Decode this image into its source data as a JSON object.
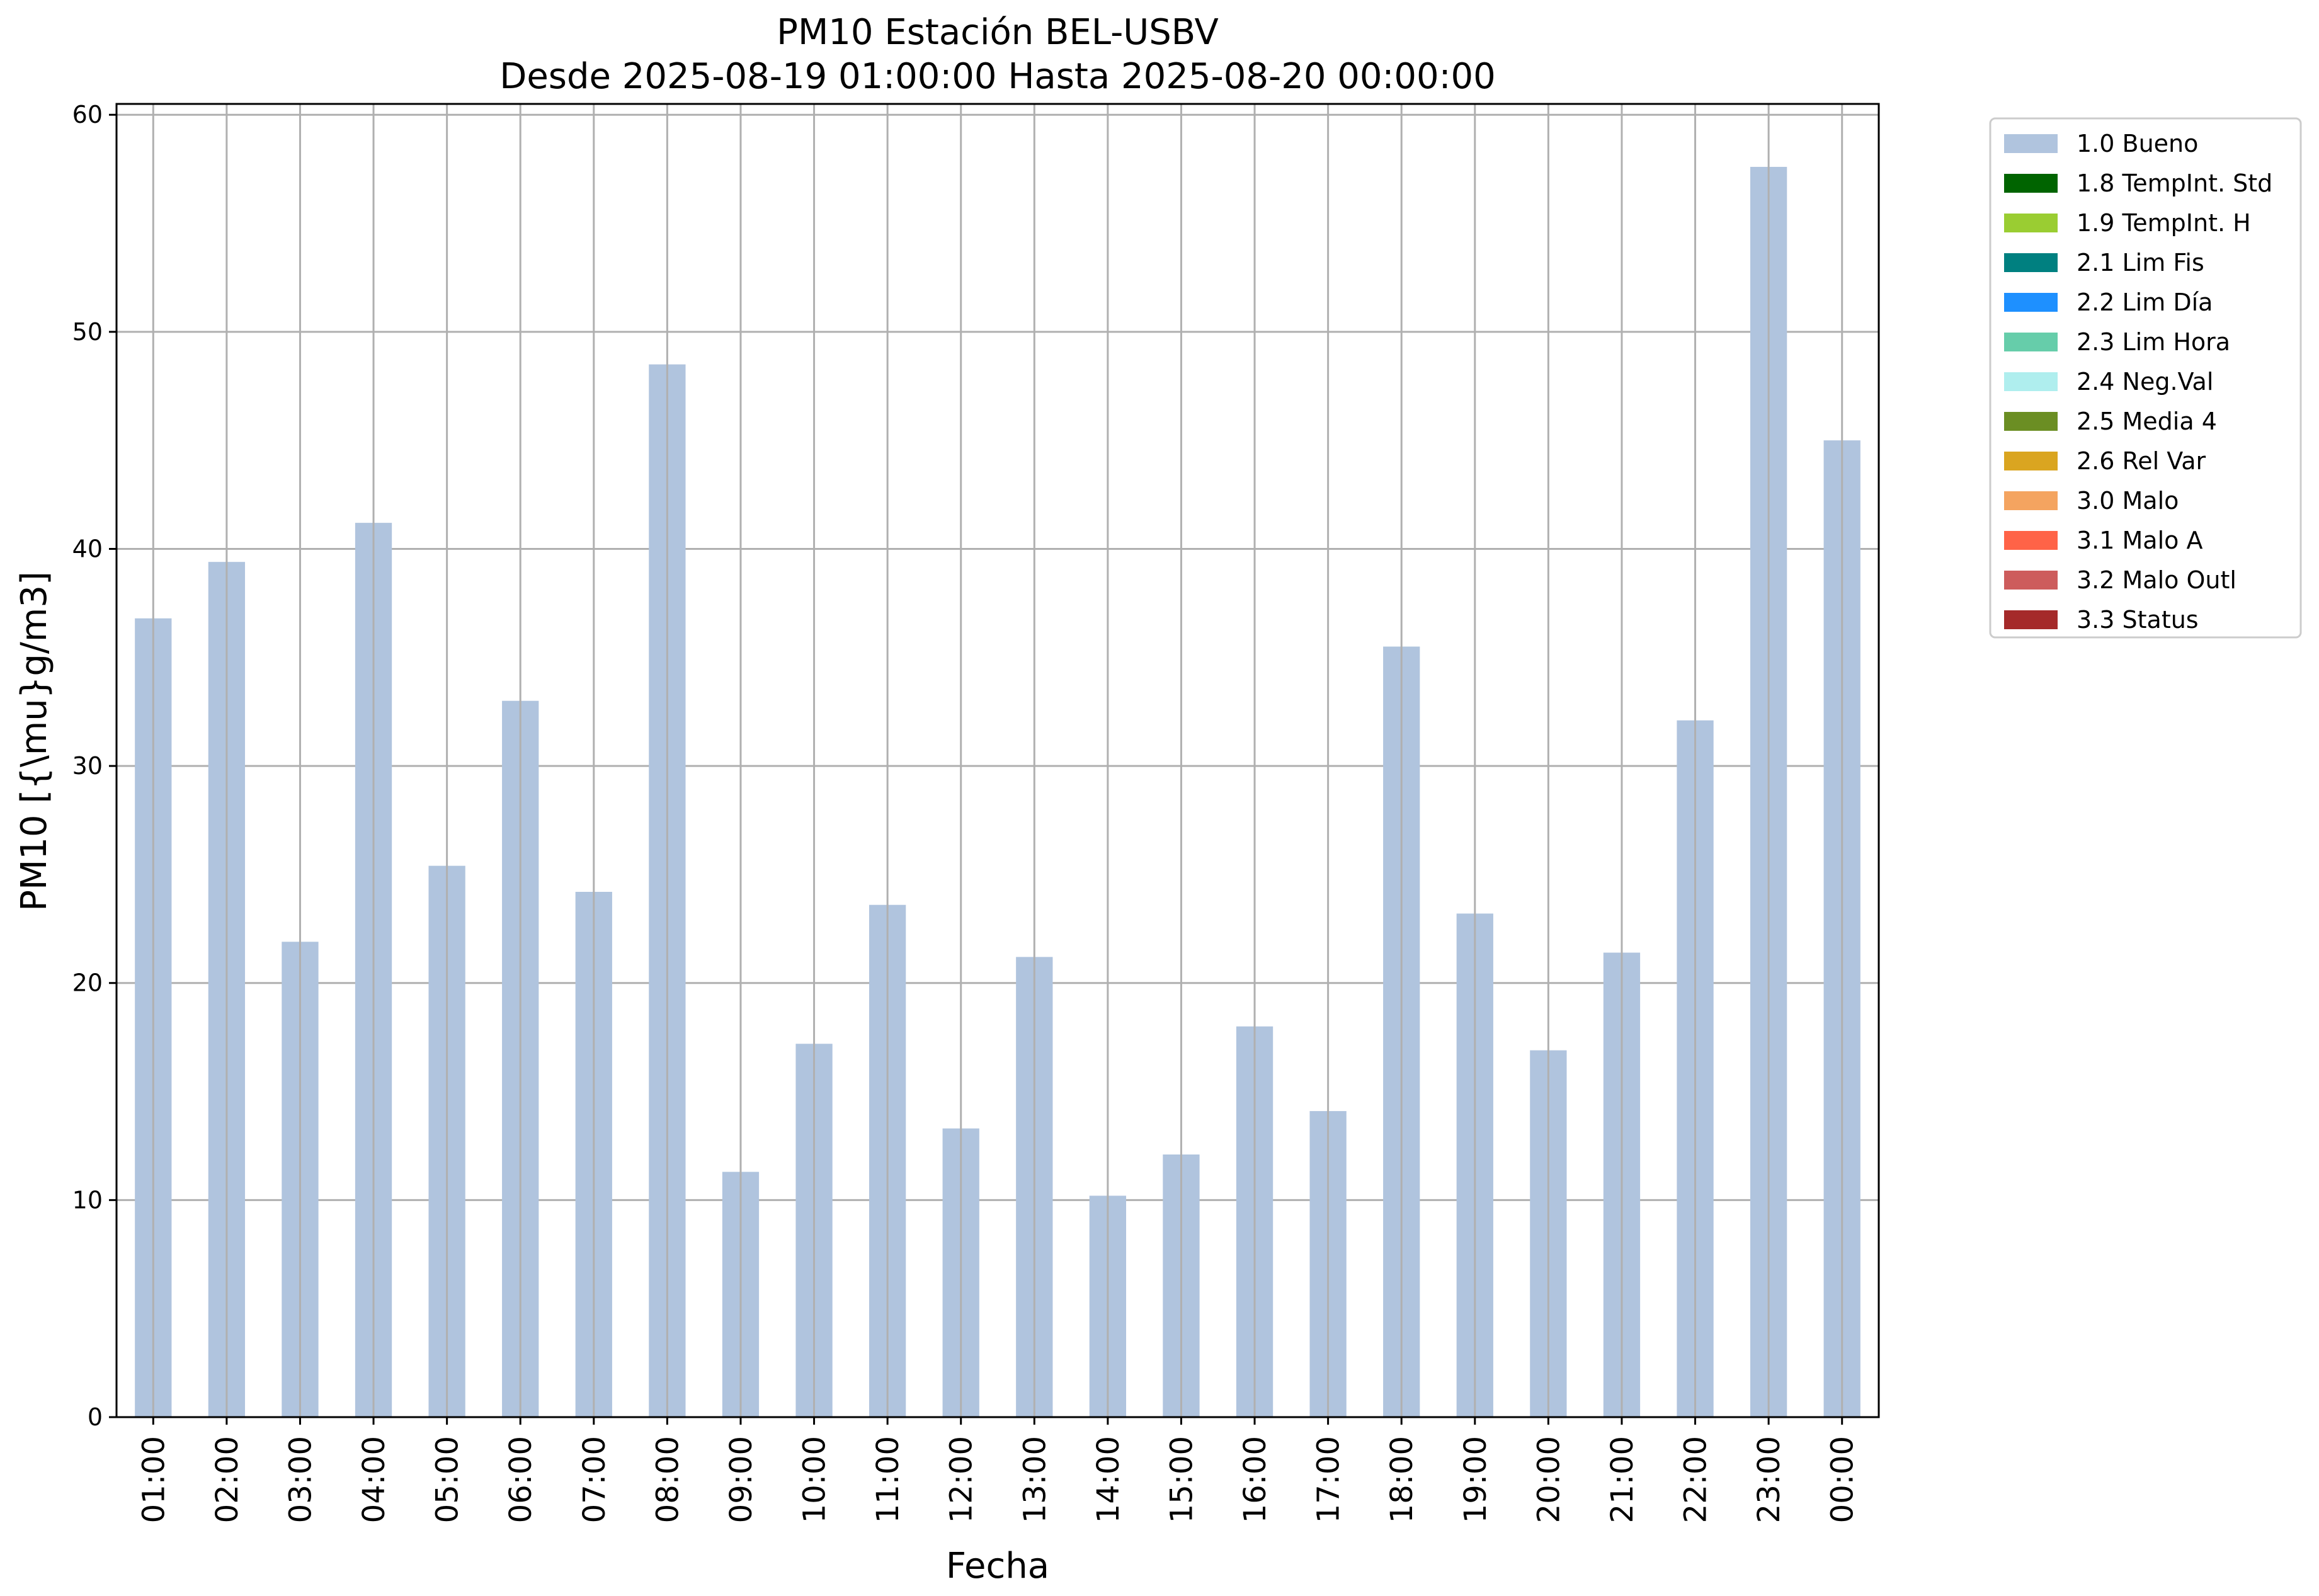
{
  "chart_data": {
    "type": "bar",
    "title": "PM10 Estación BEL-USBV",
    "subtitle": "Desde 2025-08-19 01:00:00 Hasta 2025-08-20 00:00:00",
    "xlabel": "Fecha",
    "ylabel": "PM10 [{\\mu}g/m3]",
    "ylim": [
      0,
      60.5
    ],
    "yticks": [
      0,
      10,
      20,
      30,
      40,
      50,
      60
    ],
    "grid": true,
    "legend_position": "outside-top-right",
    "categories": [
      "01:00",
      "02:00",
      "03:00",
      "04:00",
      "05:00",
      "06:00",
      "07:00",
      "08:00",
      "09:00",
      "10:00",
      "11:00",
      "12:00",
      "13:00",
      "14:00",
      "15:00",
      "16:00",
      "17:00",
      "18:00",
      "19:00",
      "20:00",
      "21:00",
      "22:00",
      "23:00",
      "00:00"
    ],
    "series": [
      {
        "name": "1.0 Bueno",
        "color": "#b0c4de",
        "values": [
          36.8,
          39.4,
          21.9,
          41.2,
          25.4,
          33.0,
          24.2,
          48.5,
          11.3,
          17.2,
          23.6,
          13.3,
          21.2,
          10.2,
          12.1,
          18.0,
          14.1,
          35.5,
          23.2,
          16.9,
          21.4,
          32.1,
          57.6,
          45.0
        ]
      }
    ],
    "legend": [
      {
        "label": "1.0 Bueno",
        "color": "#b0c4de"
      },
      {
        "label": "1.8 TempInt. Std",
        "color": "#006400"
      },
      {
        "label": "1.9 TempInt. H",
        "color": "#9acd32"
      },
      {
        "label": "2.1 Lim Fis",
        "color": "#008080"
      },
      {
        "label": "2.2 Lim Día",
        "color": "#1e90ff"
      },
      {
        "label": "2.3 Lim Hora",
        "color": "#66cdaa"
      },
      {
        "label": "2.4 Neg.Val",
        "color": "#afeeee"
      },
      {
        "label": "2.5 Media 4",
        "color": "#6b8e23"
      },
      {
        "label": "2.6 Rel Var",
        "color": "#daa520"
      },
      {
        "label": "3.0 Malo",
        "color": "#f4a460"
      },
      {
        "label": "3.1 Malo A",
        "color": "#ff6347"
      },
      {
        "label": "3.2 Malo Outl",
        "color": "#cd5c5c"
      },
      {
        "label": "3.3 Status",
        "color": "#a52a2a"
      }
    ]
  }
}
